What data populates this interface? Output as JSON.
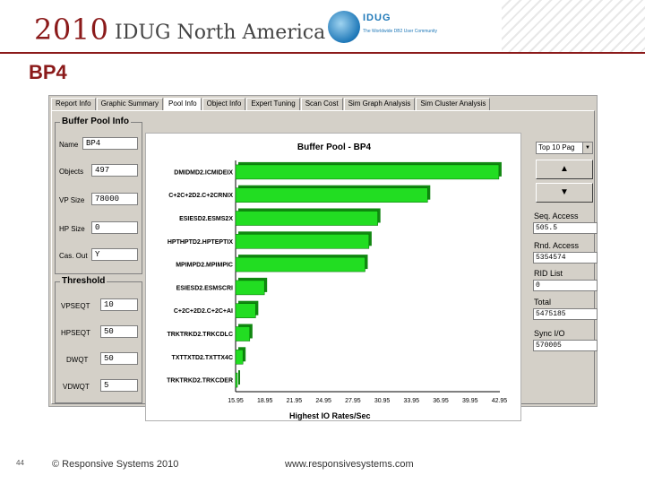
{
  "header": {
    "year": "2010",
    "conference": "IDUG North America",
    "logo_text": "IDUG",
    "logo_subtext": "The Worldwide DB2 User Community"
  },
  "slide_title": "BP4",
  "tabs": [
    "Report Info",
    "Graphic Summary",
    "Pool Info",
    "Object Info",
    "Expert Tuning",
    "Scan Cost",
    "Sim Graph Analysis",
    "Sim Cluster Analysis"
  ],
  "active_tab": "Pool Info",
  "buffer_pool_info": {
    "title": "Buffer Pool Info",
    "fields": [
      {
        "label": "Name",
        "value": "BP4"
      },
      {
        "label": "Objects",
        "value": "497"
      },
      {
        "label": "VP Size",
        "value": "78000"
      },
      {
        "label": "HP Size",
        "value": "0"
      },
      {
        "label": "Cas. Out",
        "value": "Y"
      }
    ]
  },
  "threshold": {
    "title": "Threshold",
    "fields": [
      {
        "label": "VPSEQT",
        "value": "10"
      },
      {
        "label": "HPSEQT",
        "value": "50"
      },
      {
        "label": "DWQT",
        "value": "50"
      },
      {
        "label": "VDWQT",
        "value": "5"
      }
    ]
  },
  "right_panel": {
    "combo_value": "Top 10 Pag",
    "up_arrow": "▲",
    "down_arrow": "▼",
    "fields": [
      {
        "label": "Seq. Access",
        "value": "505.5"
      },
      {
        "label": "Rnd. Access",
        "value": "5354574"
      },
      {
        "label": "RID List",
        "value": "0"
      },
      {
        "label": "Total",
        "value": "5475185"
      },
      {
        "label": "Sync I/O",
        "value": "570005"
      }
    ]
  },
  "chart_data": {
    "type": "bar",
    "orientation": "horizontal",
    "title": "Buffer Pool - BP4",
    "xlabel": "Highest IO Rates/Sec",
    "ylabel": "",
    "categories": [
      "DMIDMD2.ICMIDEIX",
      "C+2C+2D2.C+2CRNIX",
      "ESIESD2.ESMS2X",
      "HPTHPTD2.HPTEPTIX",
      "MPIMPD2.MPIMPIC",
      "ESIESD2.ESMSCRI",
      "C+2C+2D2.C+2C+AI",
      "TRKTRKD2.TRKCDLC",
      "TXTTXTD2.TXTTX4C",
      "TRKTRKD2.TRKCDER"
    ],
    "values": [
      42.9,
      35.6,
      30.5,
      29.6,
      29.2,
      18.9,
      18.0,
      17.4,
      16.7,
      16.0
    ],
    "xlim": [
      15.95,
      43.0
    ],
    "xticks": [
      "15.95",
      "18.95",
      "21.95",
      "24.95",
      "27.95",
      "30.95",
      "33.95",
      "36.95",
      "39.95",
      "42.95"
    ],
    "bar_color": "#22dd22",
    "grid": false,
    "legend": "none"
  },
  "footer": {
    "page": "44",
    "copyright": "© Responsive Systems 2010",
    "url": "www.responsivesystems.com"
  }
}
